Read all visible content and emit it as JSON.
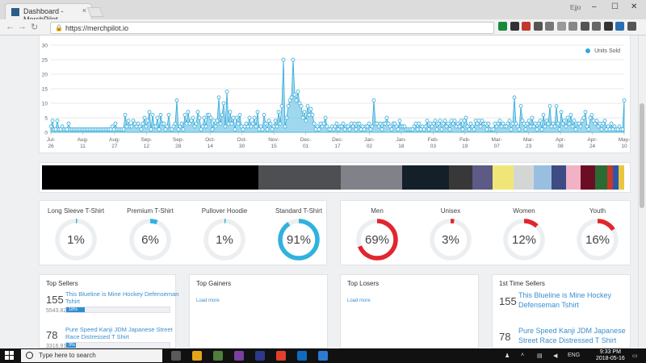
{
  "browser": {
    "tab_title": "Dashboard - MerchPilot",
    "tab_close": "×",
    "url": "https://merchpilot.io",
    "user": "Ejjo",
    "win_min": "–",
    "win_max": "☐",
    "win_close": "✕",
    "nav_back": "←",
    "nav_forward": "→",
    "nav_reload": "↻",
    "lock": "🔒",
    "extension_colors": [
      "#1a8a3a",
      "#333333",
      "#c0392b",
      "#555555",
      "#777777",
      "#999999",
      "#888888",
      "#555555",
      "#666666",
      "#333333",
      "#2a6fb0",
      "#555555"
    ]
  },
  "chart_data": {
    "type": "area",
    "series": [
      {
        "name": "Units Sold",
        "color": "#31a9d9",
        "values": [
          2,
          4,
          1,
          1,
          4,
          1,
          1,
          2,
          1,
          1,
          1,
          3,
          1,
          1,
          1,
          1,
          1,
          1,
          1,
          1,
          1,
          1,
          1,
          1,
          1,
          1,
          1,
          1,
          1,
          1,
          1,
          1,
          1,
          1,
          1,
          1,
          1,
          1,
          2,
          1,
          3,
          1,
          1,
          1,
          1,
          1,
          6,
          2,
          4,
          2,
          2,
          4,
          3,
          2,
          3,
          2,
          1,
          3,
          5,
          2,
          4,
          7,
          1,
          6,
          2,
          2,
          5,
          1,
          6,
          3,
          3,
          1,
          2,
          6,
          1,
          1,
          2,
          3,
          11,
          1,
          2,
          3,
          1,
          6,
          3,
          7,
          3,
          4,
          5,
          2,
          3,
          7,
          5,
          1,
          2,
          5,
          2,
          6,
          6,
          5,
          1,
          4,
          2,
          4,
          12,
          3,
          6,
          10,
          2,
          14,
          3,
          7,
          3,
          5,
          1,
          5,
          3,
          6,
          2,
          1,
          2,
          3,
          2,
          5,
          2,
          3,
          5,
          2,
          7,
          1,
          2,
          1,
          6,
          3,
          1,
          4,
          3,
          1,
          2,
          4,
          2,
          7,
          3,
          9,
          25,
          2,
          5,
          9,
          11,
          12,
          25,
          13,
          11,
          14,
          10,
          9,
          5,
          7,
          4,
          9,
          6,
          8,
          6,
          3,
          1,
          2,
          1,
          3,
          2,
          3,
          5,
          2,
          1,
          1,
          2,
          1,
          2,
          3,
          1,
          2,
          2,
          3,
          1,
          2,
          2,
          1,
          3,
          2,
          3,
          1,
          3,
          3,
          1,
          2,
          1,
          2,
          2,
          3,
          1,
          2,
          11,
          3,
          3,
          2,
          3,
          1,
          3,
          3,
          5,
          3,
          2,
          1,
          3,
          3,
          2,
          1,
          4,
          2,
          2,
          2,
          1,
          1,
          1,
          1,
          1,
          2,
          3,
          1,
          3,
          1,
          2,
          1,
          2,
          4,
          1,
          3,
          2,
          3,
          4,
          1,
          3,
          4,
          1,
          3,
          4,
          2,
          3,
          1,
          4,
          3,
          4,
          2,
          3,
          2,
          4,
          1,
          4,
          5,
          2,
          1,
          3,
          2,
          1,
          4,
          3,
          4,
          2,
          4,
          3,
          3,
          1,
          3,
          1,
          1,
          1,
          3,
          2,
          3,
          4,
          2,
          3,
          2,
          2,
          3,
          4,
          1,
          3,
          12,
          3,
          2,
          1,
          9,
          4,
          3,
          1,
          3,
          4,
          2,
          5,
          2,
          3,
          1,
          3,
          4,
          1,
          6,
          2,
          4,
          3,
          9,
          2,
          3,
          2,
          9,
          3,
          1,
          7,
          3,
          4,
          2,
          5,
          3,
          6,
          2,
          4,
          1,
          3,
          3,
          2,
          4,
          5,
          7,
          2,
          1,
          5,
          6,
          4,
          3,
          4,
          2,
          3,
          1,
          3,
          4,
          1,
          2,
          1,
          3,
          1,
          2,
          1,
          1,
          2,
          1,
          1,
          11
        ]
      }
    ],
    "x_ticks": [
      [
        "Jul-",
        "26"
      ],
      [
        "Aug-",
        "11"
      ],
      [
        "Aug-",
        "27"
      ],
      [
        "Sep-",
        "12"
      ],
      [
        "Sep-",
        "28"
      ],
      [
        "Oct-",
        "14"
      ],
      [
        "Oct-",
        "30"
      ],
      [
        "Nov-",
        "15"
      ],
      [
        "Dec-",
        "01"
      ],
      [
        "Dec-",
        "17"
      ],
      [
        "Jan-",
        "02"
      ],
      [
        "Jan-",
        "18"
      ],
      [
        "Feb-",
        "03"
      ],
      [
        "Feb-",
        "19"
      ],
      [
        "Mar-",
        "07"
      ],
      [
        "Mar-",
        "23"
      ],
      [
        "Apr-",
        "08"
      ],
      [
        "Apr-",
        "24"
      ],
      [
        "May-",
        "10"
      ]
    ],
    "y_ticks": [
      0,
      5,
      10,
      15,
      20,
      25,
      30
    ],
    "ylim": [
      0,
      30
    ],
    "legend_position": "top-right",
    "grid": true
  },
  "colors": {
    "shares": [
      0.37,
      0.14,
      0.105,
      0.08,
      0.04,
      0.035,
      0.035,
      0.035,
      0.03,
      0.025,
      0.025,
      0.025,
      0.02,
      0.01,
      0.01,
      0.01
    ],
    "hexes": [
      "#000000",
      "#4d4f52",
      "#818289",
      "#132029",
      "#383838",
      "#5d5a86",
      "#f0e677",
      "#d4d6d6",
      "#98bfe0",
      "#3e4c86",
      "#f2b2c6",
      "#6b0e25",
      "#2a6b32",
      "#c8382a",
      "#2d56a8",
      "#e8c640"
    ]
  },
  "fits": [
    {
      "label": "Long Sleeve T-Shirt",
      "value": "1%",
      "fraction": 0.01
    },
    {
      "label": "Premium T-Shirt",
      "value": "6%",
      "fraction": 0.06
    },
    {
      "label": "Pullover Hoodie",
      "value": "1%",
      "fraction": 0.01
    },
    {
      "label": "Standard T-Shirt",
      "value": "91%",
      "fraction": 0.91
    }
  ],
  "genders": [
    {
      "label": "Men",
      "value": "69%",
      "fraction": 0.69
    },
    {
      "label": "Unisex",
      "value": "3%",
      "fraction": 0.03
    },
    {
      "label": "Women",
      "value": "12%",
      "fraction": 0.12
    },
    {
      "label": "Youth",
      "value": "16%",
      "fraction": 0.16
    }
  ],
  "accent_blue": "#31b2dd",
  "accent_red": "#e1262d",
  "top_sellers": {
    "title": "Top Sellers",
    "items": [
      {
        "rank": "155",
        "amount": "5543.82",
        "name": "This Blueline is Mine Hockey Defenseman Tshirt",
        "share": "18%",
        "fraction": 0.18
      },
      {
        "rank": "78",
        "amount": "3316.91",
        "name": "Pure Speed Kanji JDM Japanese Street Race Distressed T Shirt",
        "share": "9%",
        "fraction": 0.09
      }
    ]
  },
  "top_gainers": {
    "title": "Top Gainers",
    "load_more": "Load more"
  },
  "top_losers": {
    "title": "Top Losers",
    "load_more": "Load more"
  },
  "first_time": {
    "title": "1st Time Sellers",
    "items": [
      {
        "rank": "155",
        "name": "This Blueline is Mine Hockey Defenseman Tshirt"
      },
      {
        "rank": "78",
        "name": "Pure Speed Kanji JDM Japanese Street Race Distressed T Shirt"
      }
    ]
  },
  "taskbar": {
    "search_placeholder": "Type here to search",
    "time": "9:33 PM",
    "date": "2018-05-16",
    "lang": "ENG",
    "app_colors": [
      "#5a5a5a",
      "#e6a519",
      "#4f7f3a",
      "#7a3fa0",
      "#2b3a8a",
      "#e3402c",
      "#0f6cbd",
      "#2b7bd6"
    ]
  }
}
